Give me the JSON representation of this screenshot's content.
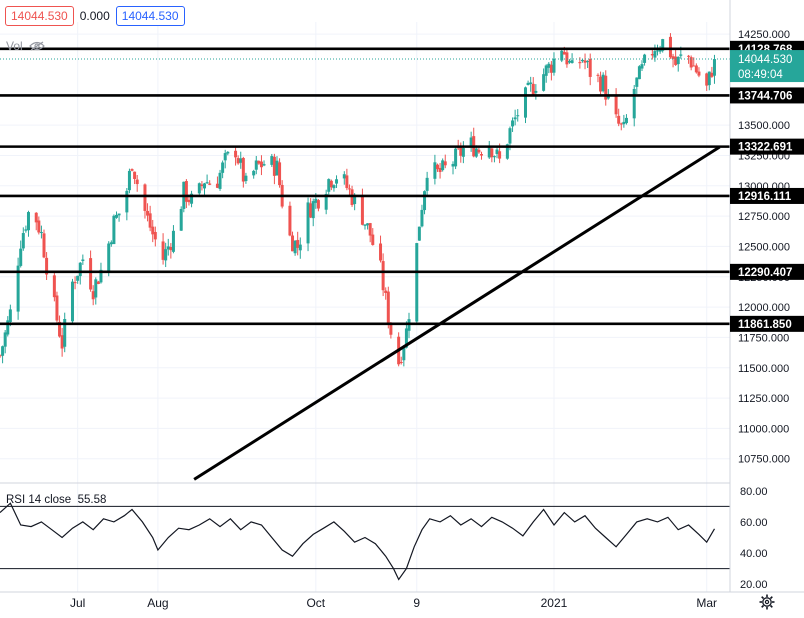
{
  "header": {
    "bid": "14044.530",
    "spread": "0.000",
    "ask": "14044.530",
    "vol_label": "Vol"
  },
  "price_axis": {
    "ticks": [
      "14250.000",
      "13750.000",
      "13500.000",
      "13250.000",
      "13000.000",
      "12750.000",
      "12500.000",
      "12250.000",
      "12000.000",
      "11750.000",
      "11500.000",
      "11250.000",
      "11000.000",
      "10750.000"
    ]
  },
  "levels": [
    {
      "value": 14128.768,
      "label": "14128.768"
    },
    {
      "value": 13744.706,
      "label": "13744.706"
    },
    {
      "value": 13322.691,
      "label": "13322.691"
    },
    {
      "value": 12916.111,
      "label": "12916.111"
    },
    {
      "value": 12290.407,
      "label": "12290.407"
    },
    {
      "value": 11861.85,
      "label": "11861.850"
    }
  ],
  "last_price": {
    "label": "14044.530",
    "countdown": "08:49:04"
  },
  "rsi": {
    "label": "RSI 14 close",
    "value": "55.58",
    "ticks": [
      "80.00",
      "60.00",
      "40.00",
      "20.00"
    ]
  },
  "time_axis": {
    "labels": [
      "Jul",
      "Aug",
      "Oct",
      "9",
      "2021",
      "Mar"
    ]
  },
  "colors": {
    "up": "#26a69a",
    "down": "#ef5350",
    "line": "#000000",
    "grid": "#f0f3fa"
  },
  "chart_data": {
    "type": "candlestick",
    "ylim": [
      10550,
      14350
    ],
    "trendline": {
      "from": {
        "x": "Aug 15",
        "y": 10580
      },
      "to": {
        "x": "Mar 6",
        "y": 13320
      }
    },
    "close_path": [
      {
        "date": "Jun 1",
        "close": 11600
      },
      {
        "date": "Jun 5",
        "close": 11950
      },
      {
        "date": "Jun 9",
        "close": 12550
      },
      {
        "date": "Jun 13",
        "close": 12850
      },
      {
        "date": "Jun 17",
        "close": 12600
      },
      {
        "date": "Jun 21",
        "close": 12100
      },
      {
        "date": "Jun 25",
        "close": 11700
      },
      {
        "date": "Jun 29",
        "close": 12200
      },
      {
        "date": "Jul 3",
        "close": 12400
      },
      {
        "date": "Jul 7",
        "close": 12150
      },
      {
        "date": "Jul 11",
        "close": 12350
      },
      {
        "date": "Jul 15",
        "close": 12700
      },
      {
        "date": "Jul 19",
        "close": 12850
      },
      {
        "date": "Jul 22",
        "close": 13200
      },
      {
        "date": "Jul 26",
        "close": 12850
      },
      {
        "date": "Jul 30",
        "close": 12600
      },
      {
        "date": "Aug 3",
        "close": 12400
      },
      {
        "date": "Aug 7",
        "close": 12600
      },
      {
        "date": "Aug 11",
        "close": 12950
      },
      {
        "date": "Aug 15",
        "close": 12850
      },
      {
        "date": "Aug 19",
        "close": 13050
      },
      {
        "date": "Aug 23",
        "close": 13000
      },
      {
        "date": "Aug 27",
        "close": 13200
      },
      {
        "date": "Aug 31",
        "close": 13300
      },
      {
        "date": "Sep 4",
        "close": 13000
      },
      {
        "date": "Sep 8",
        "close": 13150
      },
      {
        "date": "Sep 12",
        "close": 13200
      },
      {
        "date": "Sep 16",
        "close": 13150
      },
      {
        "date": "Sep 20",
        "close": 12600
      },
      {
        "date": "Sep 24",
        "close": 12500
      },
      {
        "date": "Sep 28",
        "close": 12800
      },
      {
        "date": "Oct 2",
        "close": 12900
      },
      {
        "date": "Oct 6",
        "close": 13050
      },
      {
        "date": "Oct 10",
        "close": 13100
      },
      {
        "date": "Oct 14",
        "close": 12950
      },
      {
        "date": "Oct 18",
        "close": 12800
      },
      {
        "date": "Oct 22",
        "close": 12600
      },
      {
        "date": "Oct 26",
        "close": 12300
      },
      {
        "date": "Oct 30",
        "close": 11800
      },
      {
        "date": "Nov 2",
        "close": 11550
      },
      {
        "date": "Nov 5",
        "close": 11800
      },
      {
        "date": "Nov 8",
        "close": 12300
      },
      {
        "date": "Nov 10",
        "close": 12700
      },
      {
        "date": "Nov 13",
        "close": 13150
      },
      {
        "date": "Nov 17",
        "close": 13100
      },
      {
        "date": "Nov 21",
        "close": 13150
      },
      {
        "date": "Nov 25",
        "close": 13250
      },
      {
        "date": "Nov 29",
        "close": 13350
      },
      {
        "date": "Dec 3",
        "close": 13300
      },
      {
        "date": "Dec 7",
        "close": 13350
      },
      {
        "date": "Dec 11",
        "close": 13200
      },
      {
        "date": "Dec 15",
        "close": 13450
      },
      {
        "date": "Dec 19",
        "close": 13650
      },
      {
        "date": "Dec 23",
        "close": 13800
      },
      {
        "date": "Dec 27",
        "close": 13900
      },
      {
        "date": "Dec 31",
        "close": 14000
      },
      {
        "date": "Jan 4",
        "close": 14150
      },
      {
        "date": "Jan 8",
        "close": 13950
      },
      {
        "date": "Jan 12",
        "close": 14050
      },
      {
        "date": "Jan 16",
        "close": 13900
      },
      {
        "date": "Jan 20",
        "close": 13850
      },
      {
        "date": "Jan 24",
        "close": 13550
      },
      {
        "date": "Jan 28",
        "close": 13450
      },
      {
        "date": "Feb 1",
        "close": 13800
      },
      {
        "date": "Feb 5",
        "close": 14000
      },
      {
        "date": "Feb 9",
        "close": 14150
      },
      {
        "date": "Feb 13",
        "close": 14200
      },
      {
        "date": "Feb 17",
        "close": 14000
      },
      {
        "date": "Feb 21",
        "close": 14100
      },
      {
        "date": "Feb 25",
        "close": 13950
      },
      {
        "date": "Mar 1",
        "close": 13800
      },
      {
        "date": "Mar 4",
        "close": 14044.53
      }
    ],
    "rsi_ylim": [
      15,
      85
    ],
    "rsi_bands": [
      70,
      30
    ],
    "rsi_path": [
      {
        "date": "Jun 1",
        "value": 66
      },
      {
        "date": "Jun 5",
        "value": 72
      },
      {
        "date": "Jun 9",
        "value": 58
      },
      {
        "date": "Jun 13",
        "value": 57
      },
      {
        "date": "Jun 17",
        "value": 60
      },
      {
        "date": "Jun 21",
        "value": 55
      },
      {
        "date": "Jun 25",
        "value": 50
      },
      {
        "date": "Jun 29",
        "value": 56
      },
      {
        "date": "Jul 3",
        "value": 60
      },
      {
        "date": "Jul 7",
        "value": 55
      },
      {
        "date": "Jul 11",
        "value": 62
      },
      {
        "date": "Jul 15",
        "value": 60
      },
      {
        "date": "Jul 19",
        "value": 64
      },
      {
        "date": "Jul 22",
        "value": 68
      },
      {
        "date": "Jul 26",
        "value": 60
      },
      {
        "date": "Jul 30",
        "value": 50
      },
      {
        "date": "Aug 1",
        "value": 42
      },
      {
        "date": "Aug 5",
        "value": 50
      },
      {
        "date": "Aug 9",
        "value": 56
      },
      {
        "date": "Aug 13",
        "value": 55
      },
      {
        "date": "Aug 17",
        "value": 58
      },
      {
        "date": "Aug 21",
        "value": 62
      },
      {
        "date": "Aug 25",
        "value": 57
      },
      {
        "date": "Aug 29",
        "value": 62
      },
      {
        "date": "Sep 2",
        "value": 55
      },
      {
        "date": "Sep 6",
        "value": 60
      },
      {
        "date": "Sep 10",
        "value": 58
      },
      {
        "date": "Sep 14",
        "value": 50
      },
      {
        "date": "Sep 18",
        "value": 42
      },
      {
        "date": "Sep 22",
        "value": 38
      },
      {
        "date": "Sep 26",
        "value": 46
      },
      {
        "date": "Sep 30",
        "value": 52
      },
      {
        "date": "Oct 4",
        "value": 56
      },
      {
        "date": "Oct 8",
        "value": 60
      },
      {
        "date": "Oct 12",
        "value": 54
      },
      {
        "date": "Oct 16",
        "value": 47
      },
      {
        "date": "Oct 20",
        "value": 50
      },
      {
        "date": "Oct 24",
        "value": 46
      },
      {
        "date": "Oct 28",
        "value": 38
      },
      {
        "date": "Oct 31",
        "value": 30
      },
      {
        "date": "Nov 2",
        "value": 23
      },
      {
        "date": "Nov 5",
        "value": 30
      },
      {
        "date": "Nov 8",
        "value": 44
      },
      {
        "date": "Nov 11",
        "value": 55
      },
      {
        "date": "Nov 14",
        "value": 62
      },
      {
        "date": "Nov 18",
        "value": 60
      },
      {
        "date": "Nov 22",
        "value": 64
      },
      {
        "date": "Nov 26",
        "value": 58
      },
      {
        "date": "Nov 30",
        "value": 62
      },
      {
        "date": "Dec 4",
        "value": 57
      },
      {
        "date": "Dec 8",
        "value": 63
      },
      {
        "date": "Dec 12",
        "value": 60
      },
      {
        "date": "Dec 16",
        "value": 56
      },
      {
        "date": "Dec 20",
        "value": 51
      },
      {
        "date": "Dec 24",
        "value": 60
      },
      {
        "date": "Dec 28",
        "value": 68
      },
      {
        "date": "Jan 1",
        "value": 58
      },
      {
        "date": "Jan 5",
        "value": 66
      },
      {
        "date": "Jan 9",
        "value": 60
      },
      {
        "date": "Jan 13",
        "value": 64
      },
      {
        "date": "Jan 17",
        "value": 56
      },
      {
        "date": "Jan 21",
        "value": 50
      },
      {
        "date": "Jan 25",
        "value": 44
      },
      {
        "date": "Jan 29",
        "value": 52
      },
      {
        "date": "Feb 2",
        "value": 60
      },
      {
        "date": "Feb 6",
        "value": 62
      },
      {
        "date": "Feb 10",
        "value": 60
      },
      {
        "date": "Feb 14",
        "value": 63
      },
      {
        "date": "Feb 18",
        "value": 55
      },
      {
        "date": "Feb 22",
        "value": 58
      },
      {
        "date": "Feb 26",
        "value": 52
      },
      {
        "date": "Mar 1",
        "value": 47
      },
      {
        "date": "Mar 4",
        "value": 55.58
      }
    ],
    "x_range": [
      "Jun 1",
      "Mar 10"
    ],
    "x_ticks": [
      {
        "label": "Jul",
        "date": "Jul 1"
      },
      {
        "label": "Aug",
        "date": "Aug 1"
      },
      {
        "label": "Oct",
        "date": "Oct 1"
      },
      {
        "label": "9",
        "date": "Nov 9"
      },
      {
        "label": "2021",
        "date": "Jan 1"
      },
      {
        "label": "Mar",
        "date": "Mar 1"
      }
    ]
  }
}
